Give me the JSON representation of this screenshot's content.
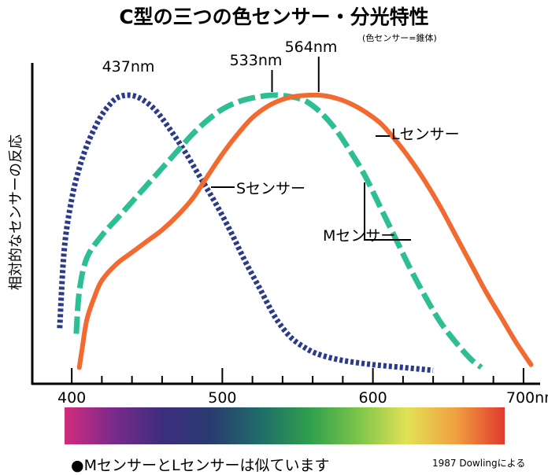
{
  "chart_data": {
    "type": "line",
    "title": "C型の三つの色センサー・分光特性",
    "subtitle": "(色センサー=錐体)",
    "xlabel": "",
    "ylabel": "相対的なセンサーの反応",
    "xlim": [
      390,
      710
    ],
    "ylim": [
      0,
      1
    ],
    "x_ticks": [
      {
        "value": 400,
        "label": "400"
      },
      {
        "value": 500,
        "label": "500"
      },
      {
        "value": 600,
        "label": "600"
      },
      {
        "value": 700,
        "label": "700nm"
      }
    ],
    "series": [
      {
        "name": "Sセンサー",
        "peak_label": "437nm",
        "color": "#2b3a8c",
        "style": "dotted",
        "points": [
          [
            392,
            0.17
          ],
          [
            395,
            0.45
          ],
          [
            400,
            0.63
          ],
          [
            405,
            0.74
          ],
          [
            410,
            0.82
          ],
          [
            415,
            0.88
          ],
          [
            420,
            0.93
          ],
          [
            425,
            0.965
          ],
          [
            430,
            0.99
          ],
          [
            437,
            1.0
          ],
          [
            445,
            0.99
          ],
          [
            455,
            0.95
          ],
          [
            465,
            0.88
          ],
          [
            475,
            0.8
          ],
          [
            485,
            0.71
          ],
          [
            495,
            0.62
          ],
          [
            505,
            0.52
          ],
          [
            515,
            0.41
          ],
          [
            525,
            0.31
          ],
          [
            535,
            0.21
          ],
          [
            545,
            0.14
          ],
          [
            555,
            0.1
          ],
          [
            565,
            0.075
          ],
          [
            580,
            0.055
          ],
          [
            600,
            0.04
          ],
          [
            620,
            0.03
          ],
          [
            640,
            0.02
          ]
        ]
      },
      {
        "name": "Mセンサー",
        "peak_label": "533nm",
        "color": "#2dbf93",
        "style": "dashed",
        "points": [
          [
            403,
            0.15
          ],
          [
            405,
            0.3
          ],
          [
            410,
            0.42
          ],
          [
            420,
            0.5
          ],
          [
            430,
            0.56
          ],
          [
            440,
            0.62
          ],
          [
            450,
            0.68
          ],
          [
            460,
            0.74
          ],
          [
            470,
            0.8
          ],
          [
            480,
            0.86
          ],
          [
            490,
            0.91
          ],
          [
            500,
            0.95
          ],
          [
            510,
            0.975
          ],
          [
            520,
            0.99
          ],
          [
            533,
            1.0
          ],
          [
            545,
            0.995
          ],
          [
            555,
            0.98
          ],
          [
            565,
            0.94
          ],
          [
            575,
            0.88
          ],
          [
            585,
            0.8
          ],
          [
            595,
            0.71
          ],
          [
            605,
            0.6
          ],
          [
            615,
            0.49
          ],
          [
            625,
            0.38
          ],
          [
            635,
            0.28
          ],
          [
            645,
            0.19
          ],
          [
            655,
            0.12
          ],
          [
            665,
            0.06
          ],
          [
            672,
            0.03
          ]
        ]
      },
      {
        "name": "Lセンサー",
        "peak_label": "564nm",
        "color": "#f26a30",
        "style": "solid",
        "points": [
          [
            405,
            0.03
          ],
          [
            407,
            0.1
          ],
          [
            410,
            0.2
          ],
          [
            415,
            0.28
          ],
          [
            420,
            0.34
          ],
          [
            430,
            0.4
          ],
          [
            440,
            0.44
          ],
          [
            450,
            0.48
          ],
          [
            460,
            0.52
          ],
          [
            470,
            0.57
          ],
          [
            480,
            0.63
          ],
          [
            490,
            0.71
          ],
          [
            500,
            0.79
          ],
          [
            510,
            0.86
          ],
          [
            520,
            0.92
          ],
          [
            530,
            0.96
          ],
          [
            540,
            0.985
          ],
          [
            550,
            0.997
          ],
          [
            564,
            1.0
          ],
          [
            575,
            0.99
          ],
          [
            585,
            0.97
          ],
          [
            595,
            0.94
          ],
          [
            605,
            0.9
          ],
          [
            615,
            0.84
          ],
          [
            625,
            0.77
          ],
          [
            635,
            0.69
          ],
          [
            645,
            0.6
          ],
          [
            655,
            0.5
          ],
          [
            665,
            0.4
          ],
          [
            675,
            0.3
          ],
          [
            685,
            0.21
          ],
          [
            695,
            0.12
          ],
          [
            705,
            0.04
          ]
        ]
      }
    ],
    "spectrum_colors": [
      "#d12c7e",
      "#7a2a8a",
      "#3d2d7e",
      "#2a3a70",
      "#1f6c6a",
      "#2f9e4e",
      "#7cc44a",
      "#e2e256",
      "#f0a040",
      "#e0392e"
    ]
  },
  "note": "●MセンサーとLセンサーは似ています",
  "credit": "1987 Dowlingによる"
}
